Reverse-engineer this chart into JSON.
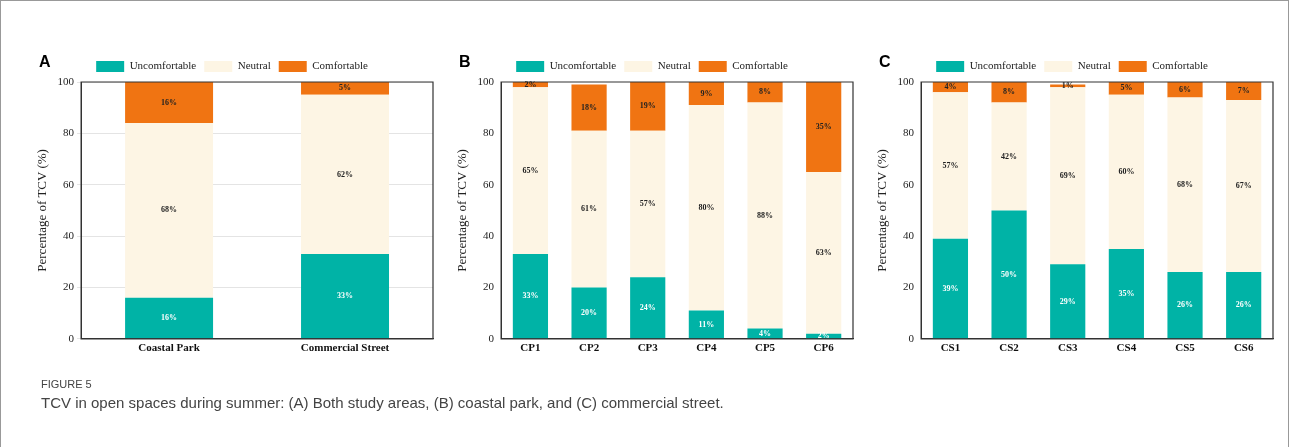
{
  "chart_data": [
    {
      "type": "bar",
      "title": "A",
      "ylabel": "Percentage of TCV (%)",
      "categories": [
        "Coastal Park",
        "Commercial Street"
      ],
      "stacked": true,
      "ylim": [
        0,
        100
      ],
      "yticks": [
        0,
        20,
        40,
        60,
        80,
        100
      ],
      "grid": "y",
      "legend": "top",
      "series": [
        {
          "name": "Uncomfortable",
          "color": "#00b3a6",
          "values": [
            16,
            33
          ],
          "value_labels": [
            "16%",
            "33%"
          ]
        },
        {
          "name": "Neutral",
          "color": "#fdf5e4",
          "values": [
            68,
            62
          ],
          "value_labels": [
            "68%",
            "62%"
          ]
        },
        {
          "name": "Comfortable",
          "color": "#f07412",
          "values": [
            16,
            5
          ],
          "value_labels": [
            "16%",
            "5%"
          ]
        }
      ],
      "annotations": [
        "FIGURE 5",
        "TCV in open spaces during summer: (A) Both study areas, (B) coastal park, and (C) commercial street."
      ]
    },
    {
      "type": "bar",
      "title": "B",
      "ylabel": "Percentage of TCV (%)",
      "categories": [
        "CP1",
        "CP2",
        "CP3",
        "CP4",
        "CP5",
        "CP6"
      ],
      "stacked": true,
      "ylim": [
        0,
        100
      ],
      "yticks": [
        0,
        20,
        40,
        60,
        80,
        100
      ],
      "legend": "top",
      "series": [
        {
          "name": "Uncomfortable",
          "color": "#00b3a6",
          "values": [
            33,
            20,
            24,
            11,
            4,
            2
          ],
          "value_labels": [
            "33%",
            "20%",
            "24%",
            "11%",
            "4%",
            "2%"
          ]
        },
        {
          "name": "Neutral",
          "color": "#fdf5e4",
          "values": [
            65,
            61,
            57,
            80,
            88,
            63
          ],
          "value_labels": [
            "65%",
            "61%",
            "57%",
            "80%",
            "88%",
            "63%"
          ]
        },
        {
          "name": "Comfortable",
          "color": "#f07412",
          "values": [
            2,
            18,
            19,
            9,
            8,
            35
          ],
          "value_labels": [
            "2%",
            "18%",
            "19%",
            "9%",
            "8%",
            "35%"
          ]
        }
      ]
    },
    {
      "type": "bar",
      "title": "C",
      "ylabel": "Percentage of TCV (%)",
      "categories": [
        "CS1",
        "CS2",
        "CS3",
        "CS4",
        "CS5",
        "CS6"
      ],
      "stacked": true,
      "ylim": [
        0,
        100
      ],
      "yticks": [
        0,
        20,
        40,
        60,
        80,
        100
      ],
      "legend": "top",
      "series": [
        {
          "name": "Uncomfortable",
          "color": "#00b3a6",
          "values": [
            39,
            50,
            29,
            35,
            26,
            26
          ],
          "value_labels": [
            "39%",
            "50%",
            "29%",
            "35%",
            "26%",
            "26%"
          ]
        },
        {
          "name": "Neutral",
          "color": "#fdf5e4",
          "values": [
            57,
            42,
            69,
            60,
            68,
            67
          ],
          "value_labels": [
            "57%",
            "42%",
            "69%",
            "60%",
            "68%",
            "67%"
          ]
        },
        {
          "name": "Comfortable",
          "color": "#f07412",
          "values": [
            4,
            8,
            1,
            5,
            6,
            7
          ],
          "value_labels": [
            "4%",
            "8%",
            "1%",
            "5%",
            "6%",
            "7%"
          ]
        }
      ]
    }
  ]
}
